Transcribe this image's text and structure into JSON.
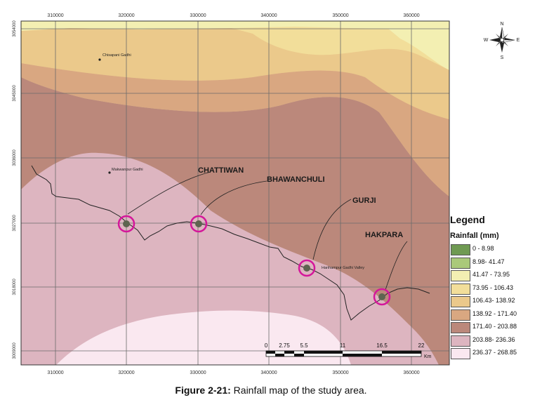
{
  "caption": {
    "label": "Figure 2-21:",
    "text": " Rainfall map of the study area."
  },
  "axes": {
    "x_ticks": [
      "310000",
      "320000",
      "330000",
      "340000",
      "350000",
      "360000"
    ],
    "y_ticks": [
      "3054000",
      "3045000",
      "3036000",
      "3027000",
      "3018000",
      "3009000"
    ]
  },
  "north_arrow": {
    "n": "N",
    "s": "S",
    "e": "E",
    "w": "W"
  },
  "sites": [
    {
      "name": "CHATTIWAN"
    },
    {
      "name": "BHAWANCHULI"
    },
    {
      "name": "GURJI"
    },
    {
      "name": "HAKPARA"
    }
  ],
  "places": [
    {
      "name": "Chisapani Gadhi"
    },
    {
      "name": "Makwanpur Gadhi"
    },
    {
      "name": "Harihampur Gadhi Valley"
    }
  ],
  "scale_bar": {
    "ticks": [
      "0",
      "2.75",
      "5.5",
      "11",
      "16.5",
      "22"
    ],
    "unit": "Km"
  },
  "legend": {
    "title": "Legend",
    "subtitle": "Rainfall (mm)",
    "classes": [
      {
        "label": "0 - 8.98",
        "color": "#6f9a52"
      },
      {
        "label": "8.98- 41.47",
        "color": "#aac97a"
      },
      {
        "label": "41.47 - 73.95",
        "color": "#f3efb2"
      },
      {
        "label": "73.95 - 106.43",
        "color": "#f2de9a"
      },
      {
        "label": "106.43- 138.92",
        "color": "#ebc98b"
      },
      {
        "label": "138.92 - 171.40",
        "color": "#d9a781"
      },
      {
        "label": "171.40 - 203.88",
        "color": "#bb887b"
      },
      {
        "label": "203.88- 236.36",
        "color": "#ddb5c0"
      },
      {
        "label": "236.37 - 268.85",
        "color": "#fae8f0"
      }
    ]
  }
}
